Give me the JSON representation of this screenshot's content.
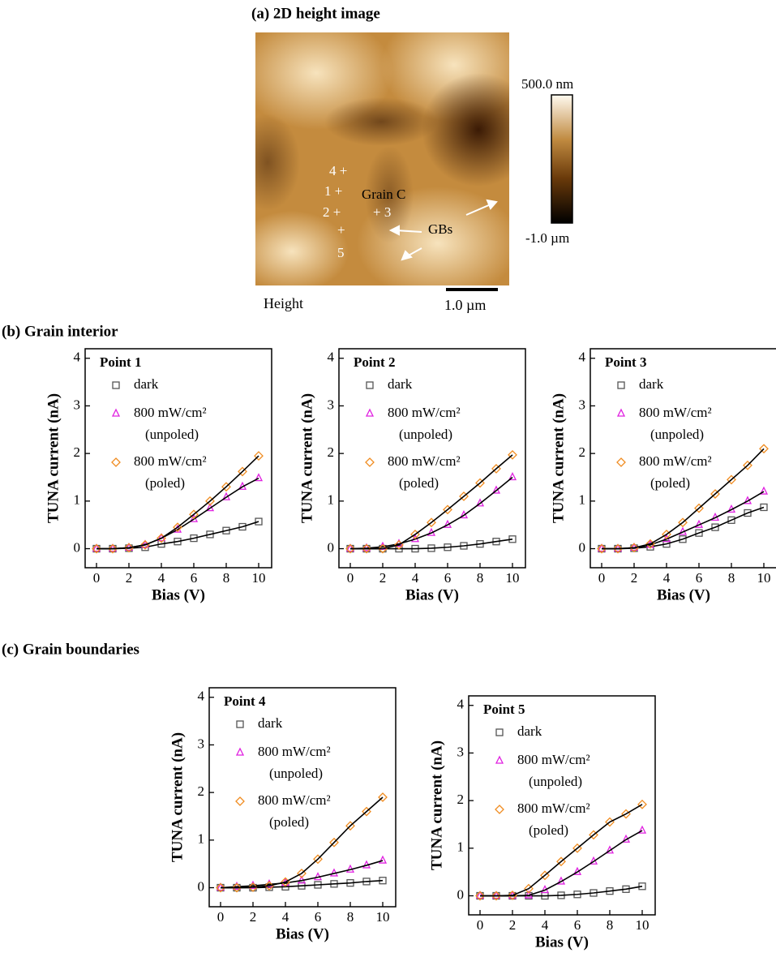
{
  "figure_a": {
    "title": "(a) 2D height image",
    "channel": "Height",
    "scale_bar": "1.0 µm",
    "colorbar_max": "500.0 nm",
    "colorbar_min": "-1.0 µm",
    "point_labels": [
      "4 +",
      "1 +",
      "2 +",
      "+ 3",
      "+",
      "5"
    ],
    "grain_label": "Grain C",
    "gb_label": "GBs"
  },
  "section_b": "(b) Grain interior",
  "section_c": "(c) Grain boundaries",
  "chart_data": [
    {
      "type": "line",
      "title": "Point 1",
      "xlabel": "Bias (V)",
      "ylabel": "TUNA current (nA)",
      "x": [
        0,
        1,
        2,
        3,
        4,
        5,
        6,
        7,
        8,
        9,
        10
      ],
      "xlim": [
        -0.7,
        10.8
      ],
      "ylim": [
        -0.4,
        4.2
      ],
      "xticks": [
        0,
        2,
        4,
        6,
        8,
        10
      ],
      "yticks": [
        0,
        1,
        2,
        3,
        4
      ],
      "line_color": "#000000",
      "series": [
        {
          "name": "dark",
          "color": "#555555",
          "marker": "square",
          "values": [
            0,
            0,
            0.01,
            0.03,
            0.1,
            0.15,
            0.22,
            0.3,
            0.38,
            0.46,
            0.57
          ]
        },
        {
          "name": "800 mW/cm²",
          "condition": "(unpoled)",
          "color": "#e020e0",
          "marker": "triangle",
          "values": [
            0,
            0,
            0.02,
            0.08,
            0.22,
            0.4,
            0.62,
            0.85,
            1.08,
            1.3,
            1.48
          ]
        },
        {
          "name": "800 mW/cm²",
          "condition": "(poled)",
          "color": "#f08c20",
          "marker": "diamond",
          "values": [
            0,
            0,
            0.02,
            0.08,
            0.22,
            0.45,
            0.72,
            1.0,
            1.3,
            1.62,
            1.95
          ]
        }
      ]
    },
    {
      "type": "line",
      "title": "Point 2",
      "xlabel": "Bias (V)",
      "ylabel": "TUNA current (nA)",
      "x": [
        0,
        1,
        2,
        3,
        4,
        5,
        6,
        7,
        8,
        9,
        10
      ],
      "xlim": [
        -0.7,
        10.8
      ],
      "ylim": [
        -0.4,
        4.2
      ],
      "xticks": [
        0,
        2,
        4,
        6,
        8,
        10
      ],
      "yticks": [
        0,
        1,
        2,
        3,
        4
      ],
      "line_color": "#000000",
      "series": [
        {
          "name": "dark",
          "color": "#555555",
          "marker": "square",
          "values": [
            0,
            0,
            0,
            0,
            0,
            0.01,
            0.03,
            0.06,
            0.1,
            0.15,
            0.2
          ]
        },
        {
          "name": "800 mW/cm²",
          "condition": "(unpoled)",
          "color": "#e020e0",
          "marker": "triangle",
          "values": [
            0,
            0.01,
            0.04,
            0.1,
            0.2,
            0.33,
            0.5,
            0.7,
            0.95,
            1.22,
            1.5
          ]
        },
        {
          "name": "800 mW/cm²",
          "condition": "(poled)",
          "color": "#f08c20",
          "marker": "diamond",
          "values": [
            0,
            0,
            0,
            0.08,
            0.3,
            0.55,
            0.82,
            1.1,
            1.38,
            1.68,
            1.97
          ]
        }
      ]
    },
    {
      "type": "line",
      "title": "Point 3",
      "xlabel": "Bias (V)",
      "ylabel": "TUNA current (nA)",
      "x": [
        0,
        1,
        2,
        3,
        4,
        5,
        6,
        7,
        8,
        9,
        10
      ],
      "xlim": [
        -0.7,
        10.8
      ],
      "ylim": [
        -0.4,
        4.2
      ],
      "xticks": [
        0,
        2,
        4,
        6,
        8,
        10
      ],
      "yticks": [
        0,
        1,
        2,
        3,
        4
      ],
      "line_color": "#000000",
      "series": [
        {
          "name": "dark",
          "color": "#555555",
          "marker": "square",
          "values": [
            0,
            0,
            0.01,
            0.04,
            0.1,
            0.2,
            0.33,
            0.45,
            0.6,
            0.75,
            0.87
          ]
        },
        {
          "name": "800 mW/cm²",
          "condition": "(unpoled)",
          "color": "#e020e0",
          "marker": "triangle",
          "values": [
            0,
            0,
            0.02,
            0.08,
            0.2,
            0.35,
            0.5,
            0.65,
            0.82,
            1.0,
            1.2
          ]
        },
        {
          "name": "800 mW/cm²",
          "condition": "(poled)",
          "color": "#f08c20",
          "marker": "diamond",
          "values": [
            0,
            0,
            0.02,
            0.1,
            0.3,
            0.55,
            0.85,
            1.15,
            1.45,
            1.75,
            2.1
          ]
        }
      ]
    },
    {
      "type": "line",
      "title": "Point 4",
      "xlabel": "Bias (V)",
      "ylabel": "TUNA current (nA)",
      "x": [
        0,
        1,
        2,
        3,
        4,
        5,
        6,
        7,
        8,
        9,
        10
      ],
      "xlim": [
        -0.7,
        10.8
      ],
      "ylim": [
        -0.4,
        4.2
      ],
      "xticks": [
        0,
        2,
        4,
        6,
        8,
        10
      ],
      "yticks": [
        0,
        1,
        2,
        3,
        4
      ],
      "line_color": "#000000",
      "series": [
        {
          "name": "dark",
          "color": "#555555",
          "marker": "square",
          "values": [
            0,
            0,
            0,
            0.01,
            0.02,
            0.04,
            0.06,
            0.08,
            0.1,
            0.13,
            0.15
          ]
        },
        {
          "name": "800 mW/cm²",
          "condition": "(unpoled)",
          "color": "#e020e0",
          "marker": "triangle",
          "values": [
            0,
            0.02,
            0.04,
            0.07,
            0.1,
            0.15,
            0.22,
            0.3,
            0.38,
            0.47,
            0.57
          ]
        },
        {
          "name": "800 mW/cm²",
          "condition": "(poled)",
          "color": "#f08c20",
          "marker": "diamond",
          "values": [
            0,
            0,
            0.01,
            0.04,
            0.12,
            0.3,
            0.6,
            0.95,
            1.3,
            1.6,
            1.9
          ]
        }
      ]
    },
    {
      "type": "line",
      "title": "Point 5",
      "xlabel": "Bias (V)",
      "ylabel": "TUNA current (nA)",
      "x": [
        0,
        1,
        2,
        3,
        4,
        5,
        6,
        7,
        8,
        9,
        10
      ],
      "xlim": [
        -0.7,
        10.8
      ],
      "ylim": [
        -0.4,
        4.2
      ],
      "xticks": [
        0,
        2,
        4,
        6,
        8,
        10
      ],
      "yticks": [
        0,
        1,
        2,
        3,
        4
      ],
      "line_color": "#000000",
      "series": [
        {
          "name": "dark",
          "color": "#555555",
          "marker": "square",
          "values": [
            0,
            0,
            0,
            0,
            0,
            0.01,
            0.03,
            0.06,
            0.1,
            0.14,
            0.2
          ]
        },
        {
          "name": "800 mW/cm²",
          "condition": "(unpoled)",
          "color": "#e020e0",
          "marker": "triangle",
          "values": [
            0,
            0,
            0,
            0.01,
            0.12,
            0.3,
            0.5,
            0.72,
            0.95,
            1.18,
            1.37
          ]
        },
        {
          "name": "800 mW/cm²",
          "condition": "(poled)",
          "color": "#f08c20",
          "marker": "diamond",
          "values": [
            0,
            0,
            0.01,
            0.15,
            0.43,
            0.72,
            1.0,
            1.28,
            1.55,
            1.72,
            1.92
          ]
        }
      ]
    }
  ]
}
